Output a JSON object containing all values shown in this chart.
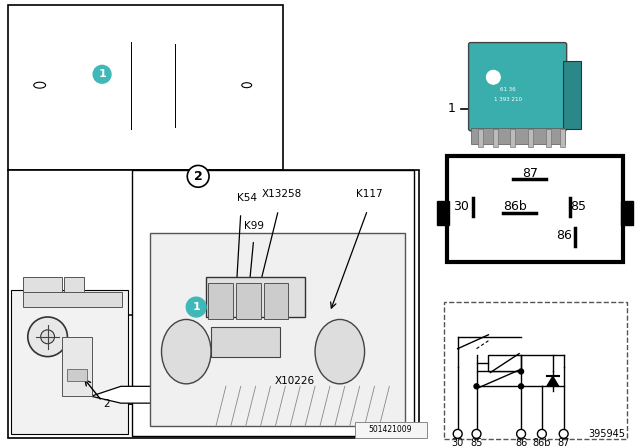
{
  "bg": "#ffffff",
  "teal": "#40b8b8",
  "relay_teal": "#3aadad",
  "black": "#000000",
  "gray": "#888888",
  "lgray": "#cccccc",
  "part_no": "395945",
  "stamp": "501421009",
  "pin_box_labels": [
    [
      "87",
      532,
      163
    ],
    [
      "30",
      460,
      200
    ],
    [
      "86b",
      517,
      200
    ],
    [
      "85",
      580,
      200
    ],
    [
      "86",
      565,
      228
    ]
  ],
  "pin_sch_labels": [
    "30",
    "85",
    "86",
    "86b",
    "87"
  ],
  "pin_sch_x": [
    459,
    478,
    530,
    551,
    572
  ],
  "detail_labels": [
    [
      "K54",
      252,
      198
    ],
    [
      "X13258",
      290,
      193
    ],
    [
      "K117",
      370,
      193
    ],
    [
      "K99",
      262,
      218
    ],
    [
      "X10226",
      298,
      378
    ]
  ]
}
